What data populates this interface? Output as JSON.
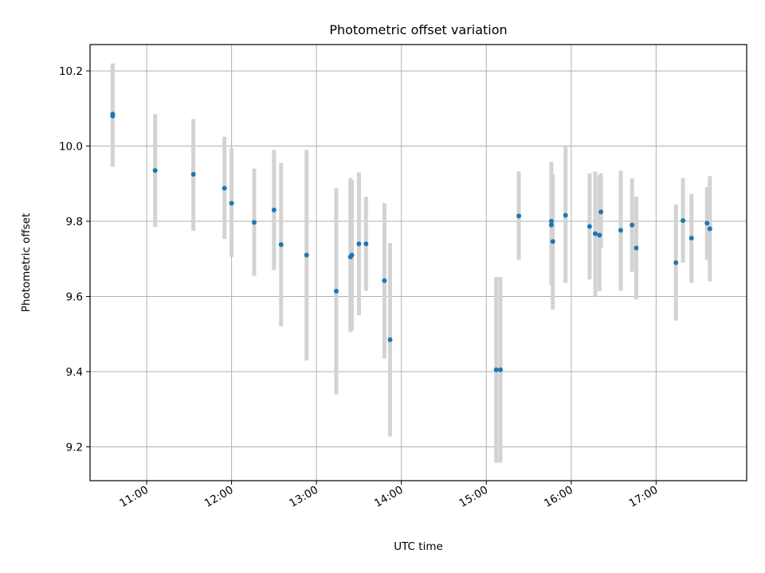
{
  "chart_data": {
    "type": "scatter",
    "title": "Photometric offset variation",
    "xlabel": "UTC time",
    "ylabel": "Photometric offset",
    "xlim": [
      "10:20",
      "18:04"
    ],
    "ylim": [
      9.11,
      10.27
    ],
    "x_ticks": [
      "11:00",
      "12:00",
      "13:00",
      "14:00",
      "15:00",
      "16:00",
      "17:00"
    ],
    "y_ticks": [
      9.2,
      9.4,
      9.6,
      9.8,
      10.0,
      10.2
    ],
    "grid": true,
    "marker_color": "#1f77b4",
    "errorbar_color": "#d3d3d3",
    "points": [
      {
        "x": "10:36",
        "y": 10.085,
        "lo": 9.95,
        "hi": 10.22
      },
      {
        "x": "10:36",
        "y": 10.08,
        "lo": 9.945,
        "hi": 10.215
      },
      {
        "x": "11:06",
        "y": 9.935,
        "lo": 9.785,
        "hi": 10.085
      },
      {
        "x": "11:33",
        "y": 9.925,
        "lo": 9.775,
        "hi": 10.072
      },
      {
        "x": "11:55",
        "y": 9.888,
        "lo": 9.753,
        "hi": 10.025
      },
      {
        "x": "12:00",
        "y": 9.848,
        "lo": 9.705,
        "hi": 9.995
      },
      {
        "x": "12:16",
        "y": 9.797,
        "lo": 9.655,
        "hi": 9.94
      },
      {
        "x": "12:30",
        "y": 9.83,
        "lo": 9.67,
        "hi": 9.99
      },
      {
        "x": "12:35",
        "y": 9.738,
        "lo": 9.52,
        "hi": 9.955
      },
      {
        "x": "12:53",
        "y": 9.71,
        "lo": 9.43,
        "hi": 9.99
      },
      {
        "x": "13:14",
        "y": 9.614,
        "lo": 9.34,
        "hi": 9.888
      },
      {
        "x": "13:24",
        "y": 9.705,
        "lo": 9.505,
        "hi": 9.915
      },
      {
        "x": "13:25",
        "y": 9.71,
        "lo": 9.51,
        "hi": 9.91
      },
      {
        "x": "13:30",
        "y": 9.74,
        "lo": 9.55,
        "hi": 9.93
      },
      {
        "x": "13:35",
        "y": 9.74,
        "lo": 9.615,
        "hi": 9.865
      },
      {
        "x": "13:48",
        "y": 9.642,
        "lo": 9.435,
        "hi": 9.848
      },
      {
        "x": "13:52",
        "y": 9.485,
        "lo": 9.228,
        "hi": 9.742
      },
      {
        "x": "15:07",
        "y": 9.405,
        "lo": 9.158,
        "hi": 9.652
      },
      {
        "x": "15:10",
        "y": 9.405,
        "lo": 9.158,
        "hi": 9.652
      },
      {
        "x": "15:23",
        "y": 9.814,
        "lo": 9.697,
        "hi": 9.933
      },
      {
        "x": "15:46",
        "y": 9.8,
        "lo": 9.64,
        "hi": 9.958
      },
      {
        "x": "15:46",
        "y": 9.79,
        "lo": 9.63,
        "hi": 9.93
      },
      {
        "x": "15:47",
        "y": 9.746,
        "lo": 9.565,
        "hi": 9.925
      },
      {
        "x": "15:56",
        "y": 9.816,
        "lo": 9.636,
        "hi": 9.998
      },
      {
        "x": "16:13",
        "y": 9.786,
        "lo": 9.645,
        "hi": 9.927
      },
      {
        "x": "16:17",
        "y": 9.767,
        "lo": 9.6,
        "hi": 9.932
      },
      {
        "x": "16:20",
        "y": 9.763,
        "lo": 9.614,
        "hi": 9.922
      },
      {
        "x": "16:21",
        "y": 9.825,
        "lo": 9.728,
        "hi": 9.928
      },
      {
        "x": "16:35",
        "y": 9.776,
        "lo": 9.615,
        "hi": 9.935
      },
      {
        "x": "16:43",
        "y": 9.79,
        "lo": 9.666,
        "hi": 9.914
      },
      {
        "x": "16:46",
        "y": 9.729,
        "lo": 9.592,
        "hi": 9.866
      },
      {
        "x": "17:14",
        "y": 9.69,
        "lo": 9.536,
        "hi": 9.845
      },
      {
        "x": "17:19",
        "y": 9.802,
        "lo": 9.69,
        "hi": 9.915
      },
      {
        "x": "17:25",
        "y": 9.755,
        "lo": 9.636,
        "hi": 9.873
      },
      {
        "x": "17:36",
        "y": 9.795,
        "lo": 9.697,
        "hi": 9.891
      },
      {
        "x": "17:38",
        "y": 9.78,
        "lo": 9.64,
        "hi": 9.92
      }
    ]
  }
}
